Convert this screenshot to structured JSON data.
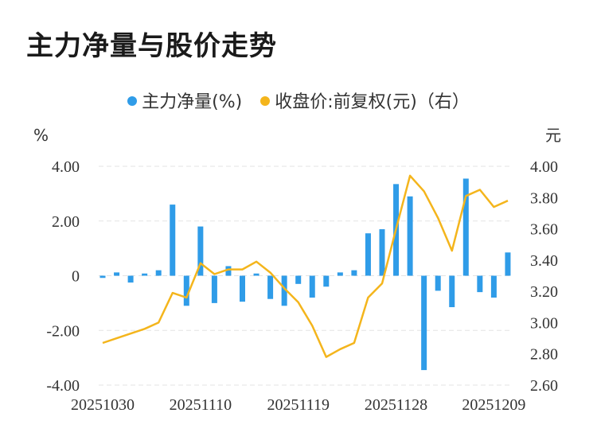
{
  "title": "主力净量与股价走势",
  "legend": {
    "bar_label": "主力净量(%)",
    "line_label": "收盘价:前复权(元)（右）"
  },
  "colors": {
    "bar": "#2f9ce8",
    "line": "#f4b51c",
    "grid": "#e3e3e3"
  },
  "chart_data": {
    "type": "bar",
    "title": "主力净量与股价走势",
    "y_left_unit": "%",
    "y_right_unit": "元",
    "ylim_left": [
      -4,
      4
    ],
    "ylim_right": [
      2.6,
      4.0
    ],
    "y_left_ticks": [
      "4.00",
      "2.00",
      "0",
      "-2.00",
      "-4.00"
    ],
    "y_right_ticks": [
      "4.00",
      "3.80",
      "3.60",
      "3.40",
      "3.20",
      "3.00",
      "2.80",
      "2.60"
    ],
    "x_tick_labels": [
      "20251030",
      "20251110",
      "20251119",
      "20251128",
      "20251209"
    ],
    "x_tick_index": [
      0,
      7,
      14,
      21,
      28
    ],
    "series": [
      {
        "name": "主力净量(%)",
        "type": "bar",
        "axis": "left",
        "values": [
          -0.08,
          0.12,
          -0.25,
          0.08,
          0.2,
          2.6,
          -1.1,
          1.8,
          -1.0,
          0.35,
          -0.95,
          0.08,
          -0.85,
          -1.1,
          -0.3,
          -0.8,
          -0.4,
          0.12,
          0.2,
          1.55,
          1.7,
          3.35,
          2.9,
          -3.45,
          -0.55,
          -1.15,
          3.55,
          -0.6,
          -0.8,
          0.85
        ]
      },
      {
        "name": "收盘价:前复权(元)（右）",
        "type": "line",
        "axis": "right",
        "values": [
          2.87,
          2.9,
          2.93,
          2.96,
          3.0,
          3.19,
          3.16,
          3.38,
          3.31,
          3.34,
          3.34,
          3.39,
          3.32,
          3.22,
          3.13,
          2.98,
          2.78,
          2.83,
          2.87,
          3.16,
          3.25,
          3.6,
          3.94,
          3.84,
          3.67,
          3.46,
          3.81,
          3.85,
          3.74,
          3.78
        ]
      }
    ]
  }
}
